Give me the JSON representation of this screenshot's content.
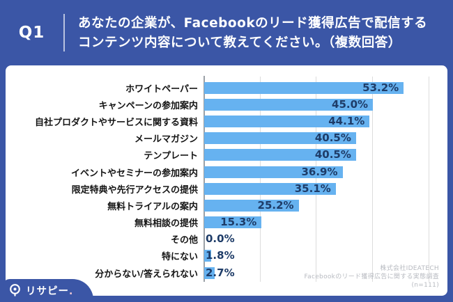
{
  "header": {
    "question_number": "Q1",
    "question_line1": "あなたの企業が、Facebookのリード獲得広告で配信する",
    "question_line2": "コンテンツ内容について教えてください。（複数回答）"
  },
  "chart_data": {
    "type": "bar",
    "orientation": "horizontal",
    "categories": [
      "ホワイトペーパー",
      "キャンペーンの参加案内",
      "自社プロダクトやサービスに関する資料",
      "メールマガジン",
      "テンプレート",
      "イベントやセミナーの参加案内",
      "限定特典や先行アクセスの提供",
      "無料トライアルの案内",
      "無料相談の提供",
      "その他",
      "特にない",
      "分からない/答えられない"
    ],
    "values": [
      53.2,
      45.0,
      44.1,
      40.5,
      40.5,
      36.9,
      35.1,
      25.2,
      15.3,
      0.0,
      1.8,
      2.7
    ],
    "unit": "%",
    "xlim": [
      0,
      65
    ],
    "gridline_step_pct": 15,
    "grid": true,
    "legend": false,
    "value_label_position": "inside-end, outside-end for small bars",
    "bar_color": "#66b2f0",
    "value_label_color": "#1e3c68"
  },
  "source_note": {
    "line1": "株式会社IDEATECH",
    "line2": "Facebookのリード獲得広告に関する実態調査",
    "line3": "(n=111)"
  },
  "logo": {
    "text": "リサピー",
    "suffix": "."
  },
  "colors": {
    "frame_blue": "#3b56a6",
    "panel_white": "#ffffff",
    "bar_blue": "#66b2f0",
    "label_navy": "#1e3c68",
    "gridline_gray": "#dcdcdc",
    "source_gray": "#b7bac0"
  }
}
